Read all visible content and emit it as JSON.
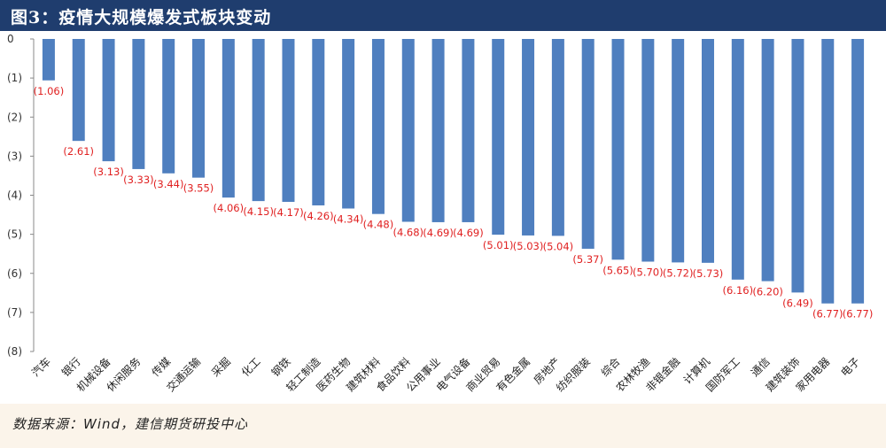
{
  "header": {
    "title": "图3：疫情大规模爆发式板块变动"
  },
  "footer": {
    "source": "数据来源：Wind，建信期货研投中心"
  },
  "colors": {
    "header_bg": "#1f3d6e",
    "bar": "#4f7fbf",
    "data_label": "#e02020",
    "footer_bg": "#fbf4ea"
  },
  "chart_data": {
    "type": "bar",
    "orientation": "vertical",
    "title": "",
    "xlabel": "",
    "ylabel": "",
    "ylim": [
      -8,
      0
    ],
    "yticks": [
      0,
      -1,
      -2,
      -3,
      -4,
      -5,
      -6,
      -7,
      -8
    ],
    "ytick_labels": [
      "0",
      "(1)",
      "(2)",
      "(3)",
      "(4)",
      "(5)",
      "(6)",
      "(7)",
      "(8)"
    ],
    "grid": false,
    "legend": "none",
    "categories": [
      "汽车",
      "银行",
      "机械设备",
      "休闲服务",
      "传媒",
      "交通运输",
      "采掘",
      "化工",
      "钢铁",
      "轻工制造",
      "医药生物",
      "建筑材料",
      "食品饮料",
      "公用事业",
      "电气设备",
      "商业贸易",
      "有色金属",
      "房地产",
      "纺织服装",
      "综合",
      "农林牧渔",
      "非银金融",
      "计算机",
      "国防军工",
      "通信",
      "建筑装饰",
      "家用电器",
      "电子"
    ],
    "values": [
      -1.06,
      -2.61,
      -3.13,
      -3.33,
      -3.44,
      -3.55,
      -4.06,
      -4.15,
      -4.17,
      -4.26,
      -4.34,
      -4.48,
      -4.68,
      -4.69,
      -4.69,
      -5.01,
      -5.03,
      -5.04,
      -5.37,
      -5.65,
      -5.7,
      -5.72,
      -5.73,
      -6.16,
      -6.2,
      -6.49,
      -6.77,
      -6.77
    ],
    "data_labels": [
      "(1.06)",
      "(2.61)",
      "(3.13)",
      "(3.33)",
      "(3.44)",
      "(3.55)",
      "(4.06)",
      "(4.15)",
      "(4.17)",
      "(4.26)",
      "(4.34)",
      "(4.48)",
      "(4.68)",
      "(4.69)",
      "(4.69)",
      "(5.01)",
      "(5.03)",
      "(5.04)",
      "(5.37)",
      "(5.65)",
      "(5.70)",
      "(5.72)",
      "(5.73)",
      "(6.16)",
      "(6.20)",
      "(6.49)",
      "(6.77)",
      "(6.77)"
    ]
  }
}
